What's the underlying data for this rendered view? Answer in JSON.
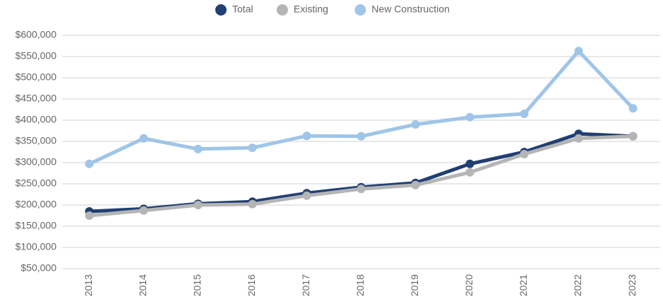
{
  "chart_data": {
    "type": "line",
    "categories": [
      "2013",
      "2014",
      "2015",
      "2016",
      "2017",
      "2018",
      "2019",
      "2020",
      "2021",
      "2022",
      "2023"
    ],
    "series": [
      {
        "name": "Total",
        "color": "#203f73",
        "values": [
          185000,
          191000,
          203000,
          208000,
          228000,
          242000,
          252000,
          297000,
          325000,
          368000,
          362000
        ]
      },
      {
        "name": "Existing",
        "color": "#b5b5b5",
        "values": [
          175000,
          187000,
          200000,
          202000,
          222000,
          238000,
          247000,
          277000,
          320000,
          357000,
          362000
        ]
      },
      {
        "name": "New Construction",
        "color": "#9fc5e8",
        "values": [
          297000,
          357000,
          332000,
          335000,
          363000,
          362000,
          390000,
          407000,
          415000,
          563000,
          428000
        ]
      }
    ],
    "ylim": [
      50000,
      600000
    ],
    "yticks": [
      {
        "value": 50000,
        "label": "$50,000"
      },
      {
        "value": 100000,
        "label": "$100,000"
      },
      {
        "value": 150000,
        "label": "$150,000"
      },
      {
        "value": 200000,
        "label": "$200,000"
      },
      {
        "value": 250000,
        "label": "$250,000"
      },
      {
        "value": 300000,
        "label": "$300,000"
      },
      {
        "value": 350000,
        "label": "$350,000"
      },
      {
        "value": 400000,
        "label": "$400,000"
      },
      {
        "value": 450000,
        "label": "$450,000"
      },
      {
        "value": 500000,
        "label": "$500,000"
      },
      {
        "value": 550000,
        "label": "$550,000"
      },
      {
        "value": 600000,
        "label": "$600,000"
      }
    ],
    "grid": true,
    "legend": "top"
  }
}
